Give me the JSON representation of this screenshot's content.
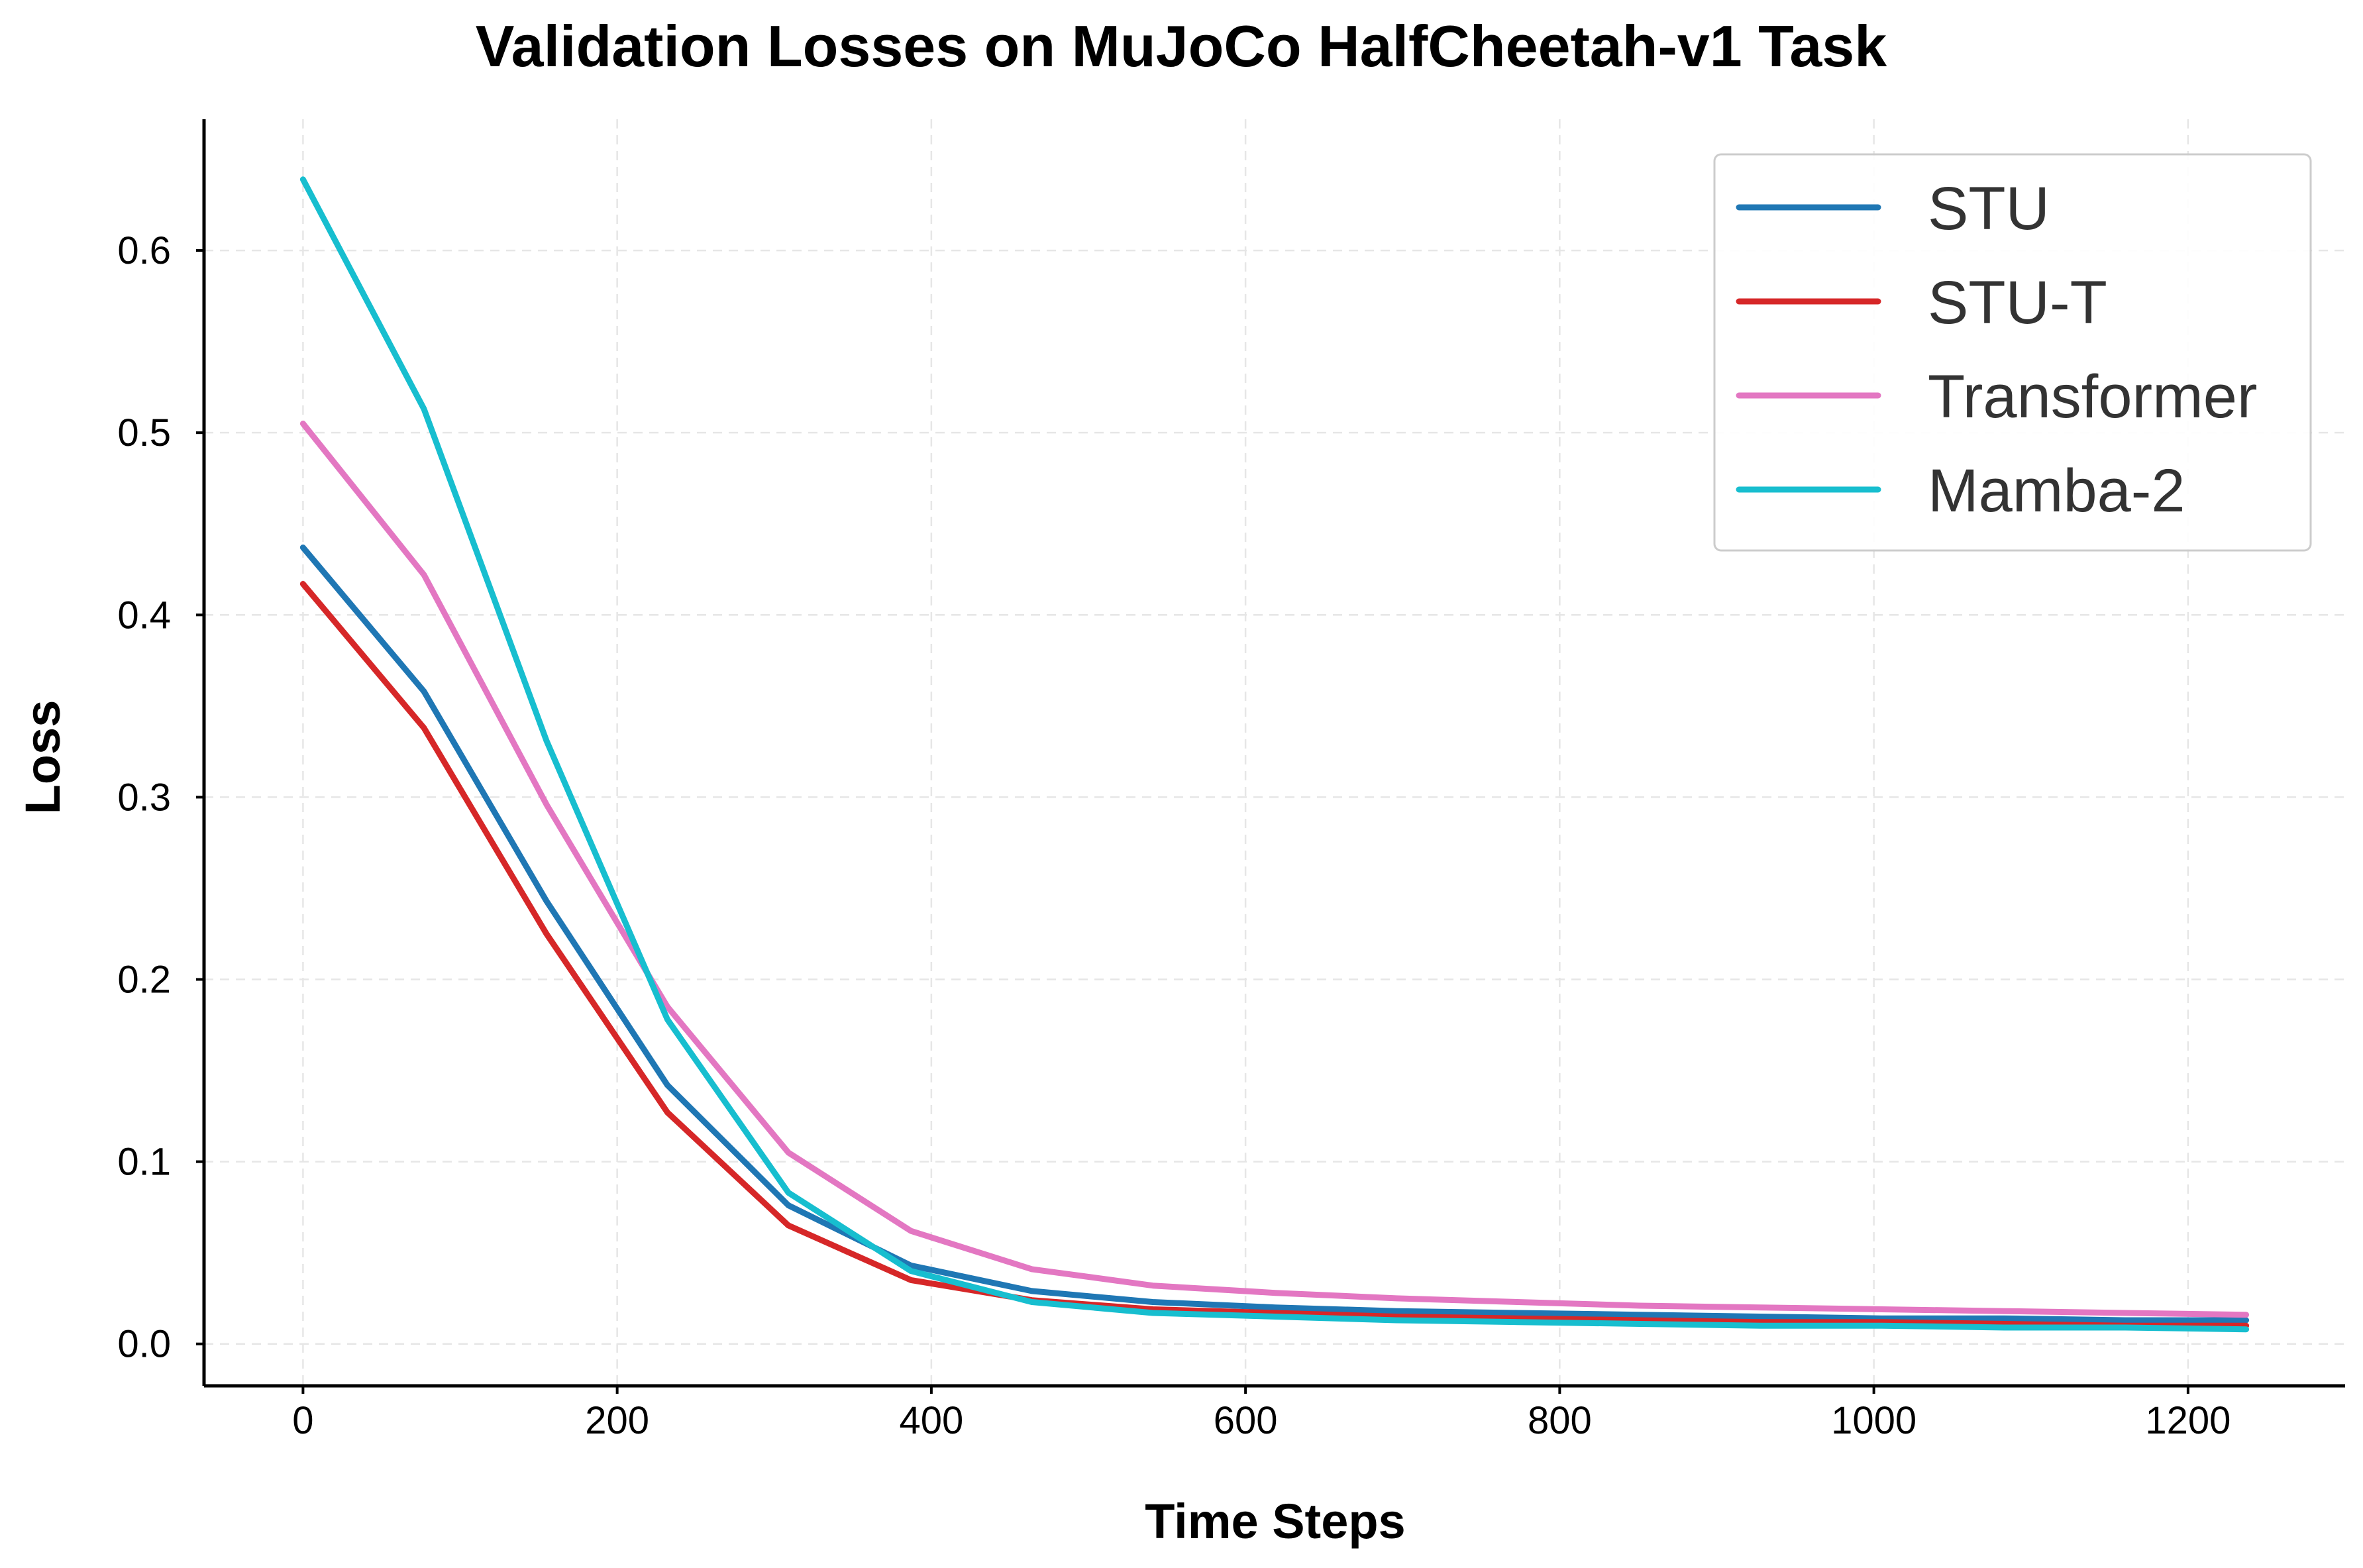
{
  "chart_data": {
    "type": "line",
    "title": "Validation Losses on MuJoCo HalfCheetah-v1 Task",
    "xlabel": "Time Steps",
    "ylabel": "Loss",
    "xlim": [
      -63,
      1300
    ],
    "ylim": [
      -0.023,
      0.672
    ],
    "xticks": [
      0,
      200,
      400,
      600,
      800,
      1000,
      1200
    ],
    "xtick_labels": [
      "0",
      "200",
      "400",
      "600",
      "800",
      "1000",
      "1200"
    ],
    "yticks": [
      0.0,
      0.1,
      0.2,
      0.3,
      0.4,
      0.5,
      0.6
    ],
    "ytick_labels": [
      "0.0",
      "0.1",
      "0.2",
      "0.3",
      "0.4",
      "0.5",
      "0.6"
    ],
    "grid": true,
    "legend_position": "top-right",
    "x": [
      0,
      77,
      155,
      232,
      309,
      387,
      464,
      541,
      619,
      696,
      773,
      851,
      928,
      1005,
      1083,
      1160,
      1237
    ],
    "series": [
      {
        "name": "STU",
        "color": "#1f77b4",
        "values": [
          0.437,
          0.358,
          0.243,
          0.142,
          0.076,
          0.043,
          0.029,
          0.023,
          0.02,
          0.018,
          0.017,
          0.016,
          0.015,
          0.014,
          0.014,
          0.013,
          0.013
        ]
      },
      {
        "name": "STU-T",
        "color": "#d62728",
        "values": [
          0.417,
          0.338,
          0.225,
          0.127,
          0.065,
          0.035,
          0.024,
          0.019,
          0.017,
          0.015,
          0.014,
          0.013,
          0.012,
          0.012,
          0.011,
          0.01,
          0.01
        ]
      },
      {
        "name": "Transformer",
        "color": "#e377c2",
        "values": [
          0.505,
          0.422,
          0.296,
          0.185,
          0.105,
          0.062,
          0.041,
          0.032,
          0.028,
          0.025,
          0.023,
          0.021,
          0.02,
          0.019,
          0.018,
          0.017,
          0.016
        ]
      },
      {
        "name": "Mamba-2",
        "color": "#17becf",
        "values": [
          0.639,
          0.513,
          0.331,
          0.178,
          0.083,
          0.04,
          0.023,
          0.017,
          0.015,
          0.013,
          0.012,
          0.011,
          0.01,
          0.01,
          0.009,
          0.009,
          0.008
        ]
      }
    ]
  }
}
